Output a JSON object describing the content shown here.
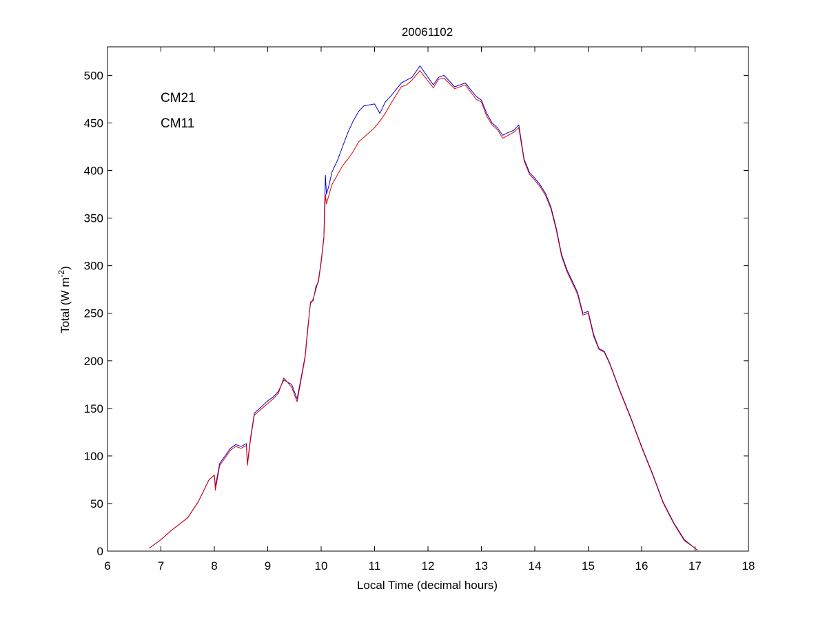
{
  "chart_data": {
    "type": "line",
    "title": "20061102",
    "xlabel": "Local Time (decimal hours)",
    "ylabel": {
      "prefix": "Total (W m",
      "sup": "-2",
      "suffix": ")"
    },
    "xlim": [
      6,
      18
    ],
    "ylim": [
      0,
      530
    ],
    "xticks": [
      6,
      7,
      8,
      9,
      10,
      11,
      12,
      13,
      14,
      15,
      16,
      17,
      18
    ],
    "yticks": [
      0,
      50,
      100,
      150,
      200,
      250,
      300,
      350,
      400,
      450,
      500
    ],
    "grid": false,
    "legend_position": "top-left",
    "series": [
      {
        "name": "CM21",
        "color": "#0000c8",
        "x": [
          6.78,
          7.0,
          7.2,
          7.5,
          7.7,
          7.9,
          8.0,
          8.02,
          8.1,
          8.3,
          8.4,
          8.5,
          8.6,
          8.62,
          8.68,
          8.75,
          8.85,
          9.0,
          9.1,
          9.2,
          9.3,
          9.45,
          9.55,
          9.65,
          9.7,
          9.75,
          9.8,
          9.85,
          9.9,
          9.95,
          10.0,
          10.05,
          10.08,
          10.1,
          10.15,
          10.2,
          10.3,
          10.4,
          10.5,
          10.6,
          10.7,
          10.8,
          11.0,
          11.1,
          11.2,
          11.3,
          11.5,
          11.6,
          11.7,
          11.85,
          12.0,
          12.1,
          12.2,
          12.3,
          12.5,
          12.7,
          12.9,
          13.0,
          13.1,
          13.2,
          13.3,
          13.4,
          13.5,
          13.6,
          13.7,
          13.8,
          13.9,
          14.0,
          14.1,
          14.2,
          14.3,
          14.4,
          14.5,
          14.6,
          14.7,
          14.8,
          14.9,
          15.0,
          15.1,
          15.2,
          15.3,
          15.4,
          15.6,
          15.8,
          16.0,
          16.2,
          16.4,
          16.6,
          16.8,
          17.0,
          17.05
        ],
        "y": [
          3,
          12,
          22,
          35,
          52,
          75,
          80,
          68,
          92,
          108,
          112,
          110,
          113,
          92,
          120,
          145,
          150,
          158,
          162,
          168,
          180,
          175,
          160,
          190,
          205,
          235,
          260,
          265,
          275,
          285,
          305,
          330,
          395,
          375,
          385,
          398,
          410,
          425,
          440,
          452,
          462,
          468,
          470,
          460,
          472,
          478,
          492,
          495,
          498,
          510,
          498,
          490,
          498,
          500,
          488,
          492,
          478,
          474,
          460,
          450,
          445,
          437,
          440,
          442,
          448,
          412,
          398,
          392,
          385,
          376,
          362,
          340,
          312,
          296,
          284,
          272,
          250,
          252,
          228,
          213,
          210,
          198,
          168,
          140,
          110,
          82,
          52,
          30,
          12,
          3,
          1
        ]
      },
      {
        "name": "CM11",
        "color": "#e00000",
        "x": [
          6.78,
          7.0,
          7.2,
          7.5,
          7.7,
          7.9,
          8.0,
          8.02,
          8.1,
          8.3,
          8.4,
          8.5,
          8.6,
          8.62,
          8.68,
          8.75,
          8.85,
          9.0,
          9.1,
          9.2,
          9.3,
          9.45,
          9.55,
          9.65,
          9.7,
          9.75,
          9.8,
          9.85,
          9.9,
          9.95,
          10.0,
          10.05,
          10.08,
          10.1,
          10.15,
          10.2,
          10.3,
          10.4,
          10.5,
          10.6,
          10.7,
          10.8,
          11.0,
          11.1,
          11.2,
          11.3,
          11.5,
          11.6,
          11.7,
          11.85,
          12.0,
          12.1,
          12.2,
          12.3,
          12.5,
          12.7,
          12.9,
          13.0,
          13.1,
          13.2,
          13.3,
          13.4,
          13.5,
          13.6,
          13.7,
          13.8,
          13.9,
          14.0,
          14.1,
          14.2,
          14.3,
          14.4,
          14.5,
          14.6,
          14.7,
          14.8,
          14.9,
          15.0,
          15.1,
          15.2,
          15.3,
          15.4,
          15.6,
          15.8,
          16.0,
          16.2,
          16.4,
          16.6,
          16.8,
          17.0,
          17.05
        ],
        "y": [
          3,
          12,
          22,
          35,
          52,
          75,
          80,
          64,
          90,
          106,
          110,
          108,
          111,
          90,
          118,
          143,
          148,
          155,
          160,
          166,
          182,
          172,
          157,
          188,
          203,
          232,
          262,
          263,
          278,
          283,
          303,
          328,
          375,
          365,
          375,
          385,
          395,
          405,
          412,
          420,
          430,
          435,
          445,
          452,
          460,
          470,
          488,
          490,
          495,
          505,
          494,
          487,
          496,
          497,
          486,
          490,
          475,
          472,
          457,
          448,
          443,
          434,
          437,
          440,
          445,
          410,
          396,
          390,
          383,
          374,
          360,
          338,
          310,
          294,
          282,
          270,
          248,
          250,
          226,
          212,
          209,
          197,
          167,
          139,
          109,
          81,
          51,
          29,
          11,
          3,
          1
        ]
      }
    ]
  }
}
